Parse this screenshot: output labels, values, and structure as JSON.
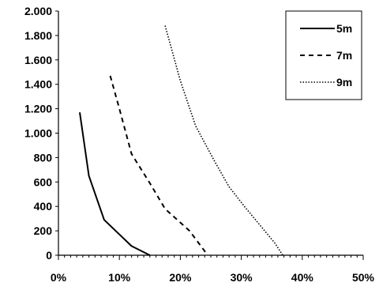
{
  "chart_data": {
    "type": "line",
    "title": "",
    "xlabel": "",
    "ylabel": "",
    "xlim": [
      0,
      50
    ],
    "ylim": [
      0,
      2000
    ],
    "x_ticks": [
      0,
      10,
      20,
      30,
      40,
      50
    ],
    "x_tick_labels": [
      "0%",
      "10%",
      "20%",
      "30%",
      "40%",
      "50%"
    ],
    "y_ticks": [
      0,
      200,
      400,
      600,
      800,
      1000,
      1200,
      1400,
      1600,
      1800,
      2000
    ],
    "y_tick_labels": [
      "0",
      "200",
      "400",
      "600",
      "800",
      "1.000",
      "1.200",
      "1.400",
      "1.600",
      "1.800",
      "2.000"
    ],
    "grid": false,
    "legend_position": "top-right",
    "series": [
      {
        "name": "5m",
        "style": "solid",
        "color": "#000000",
        "points": [
          [
            3.5,
            1170
          ],
          [
            5.0,
            650
          ],
          [
            7.5,
            290
          ],
          [
            12.0,
            75
          ],
          [
            15.0,
            0
          ]
        ]
      },
      {
        "name": "7m",
        "style": "dashed",
        "color": "#000000",
        "points": [
          [
            8.5,
            1470
          ],
          [
            10.0,
            1200
          ],
          [
            12.0,
            830
          ],
          [
            15.0,
            590
          ],
          [
            17.5,
            380
          ],
          [
            21.5,
            200
          ],
          [
            23.0,
            100
          ],
          [
            24.5,
            0
          ]
        ]
      },
      {
        "name": "9m",
        "style": "dotted",
        "color": "#000000",
        "points": [
          [
            17.5,
            1880
          ],
          [
            20.0,
            1430
          ],
          [
            22.5,
            1060
          ],
          [
            25.5,
            780
          ],
          [
            28.0,
            560
          ],
          [
            30.5,
            400
          ],
          [
            33.0,
            250
          ],
          [
            35.5,
            100
          ],
          [
            36.8,
            0
          ]
        ]
      }
    ]
  }
}
